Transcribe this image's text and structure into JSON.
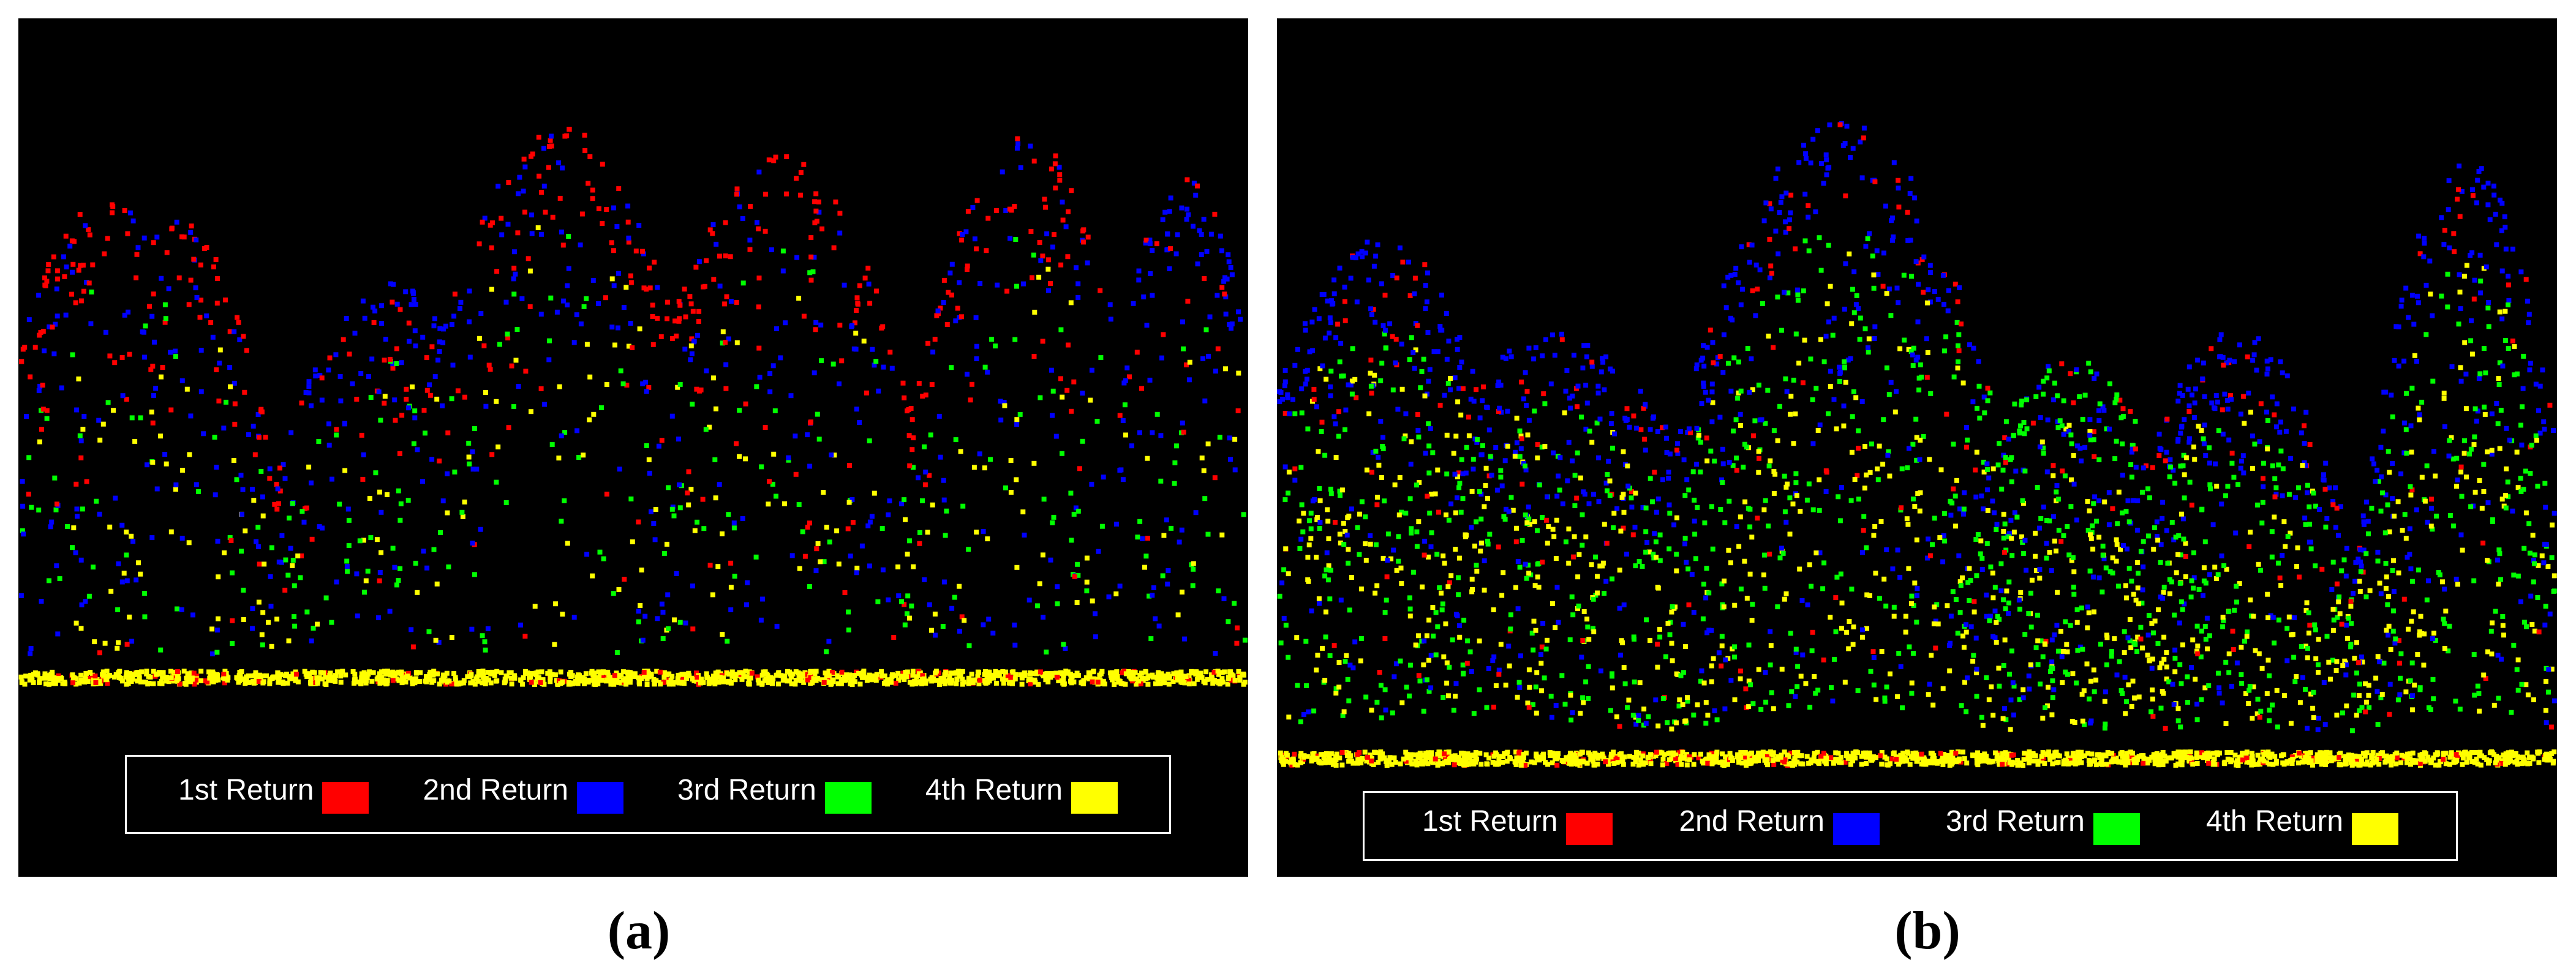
{
  "chart_data": [
    {
      "type": "scatter",
      "panel": "a",
      "caption": "(a)",
      "background": "#000000",
      "grid": false,
      "legend_position": "bottom",
      "series": [
        {
          "name": "1st Return",
          "color": "#ff0000"
        },
        {
          "name": "2nd Return",
          "color": "#0000ff"
        },
        {
          "name": "3rd Return",
          "color": "#00ff00"
        },
        {
          "name": "4th Return",
          "color": "#ffff00"
        }
      ],
      "profile": {
        "crown_peaks": [
          {
            "x": 0.07,
            "top": 0.82,
            "width": 0.1,
            "dominant": "1st Return"
          },
          {
            "x": 0.13,
            "top": 0.79,
            "width": 0.08,
            "dominant": "1st Return"
          },
          {
            "x": 0.3,
            "top": 0.68,
            "width": 0.1,
            "dominant": "2nd Return"
          },
          {
            "x": 0.44,
            "top": 0.95,
            "width": 0.12,
            "dominant": "1st Return"
          },
          {
            "x": 0.62,
            "top": 0.9,
            "width": 0.12,
            "dominant": "1st Return"
          },
          {
            "x": 0.82,
            "top": 0.93,
            "width": 0.1,
            "dominant": "1st Return"
          },
          {
            "x": 0.95,
            "top": 0.86,
            "width": 0.07,
            "dominant": "2nd Return"
          }
        ],
        "ground_level": 0.0,
        "ground_series": "4th Return"
      }
    },
    {
      "type": "scatter",
      "panel": "b",
      "caption": "(b)",
      "background": "#000000",
      "grid": false,
      "legend_position": "bottom",
      "series": [
        {
          "name": "1st Return",
          "color": "#ff0000"
        },
        {
          "name": "2nd Return",
          "color": "#0000ff"
        },
        {
          "name": "3rd Return",
          "color": "#00ff00"
        },
        {
          "name": "4th Return",
          "color": "#ffff00"
        }
      ],
      "profile": {
        "crown_peaks": [
          {
            "x": 0.08,
            "top": 0.8,
            "width": 0.12,
            "dominant": "2nd Return"
          },
          {
            "x": 0.22,
            "top": 0.66,
            "width": 0.14,
            "dominant": "2nd Return"
          },
          {
            "x": 0.44,
            "top": 0.99,
            "width": 0.14,
            "dominant": "2nd Return"
          },
          {
            "x": 0.62,
            "top": 0.62,
            "width": 0.1,
            "dominant": "3rd Return"
          },
          {
            "x": 0.75,
            "top": 0.66,
            "width": 0.1,
            "dominant": "2nd Return"
          },
          {
            "x": 0.93,
            "top": 0.94,
            "width": 0.08,
            "dominant": "2nd Return"
          }
        ],
        "ground_level": 0.0,
        "ground_series": "4th Return"
      }
    }
  ]
}
